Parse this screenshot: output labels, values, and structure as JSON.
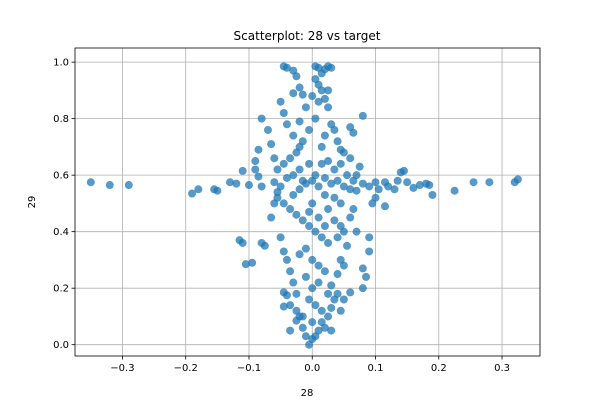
{
  "chart_data": {
    "type": "scatter",
    "title": "Scatterplot: 28 vs target",
    "xlabel": "28",
    "ylabel": "29",
    "xlim": [
      -0.375,
      0.36
    ],
    "ylim": [
      -0.04,
      1.05
    ],
    "xticks": [
      -0.3,
      -0.2,
      -0.1,
      0.0,
      0.1,
      0.2,
      0.3
    ],
    "xtick_labels": [
      "−0.3",
      "−0.2",
      "−0.1",
      "0.0",
      "0.1",
      "0.2",
      "0.3"
    ],
    "yticks": [
      0.0,
      0.2,
      0.4,
      0.6,
      0.8,
      1.0
    ],
    "ytick_labels": [
      "0.0",
      "0.2",
      "0.4",
      "0.6",
      "0.8",
      "1.0"
    ],
    "grid": true,
    "marker_color": "#1f77b4",
    "marker_alpha": 0.75,
    "series": [
      {
        "points": [
          [
            -0.35,
            0.575
          ],
          [
            -0.32,
            0.565
          ],
          [
            -0.29,
            0.565
          ],
          [
            -0.19,
            0.535
          ],
          [
            -0.18,
            0.55
          ],
          [
            -0.155,
            0.55
          ],
          [
            -0.15,
            0.545
          ],
          [
            -0.13,
            0.575
          ],
          [
            -0.12,
            0.57
          ],
          [
            -0.11,
            0.615
          ],
          [
            -0.1,
            0.565
          ],
          [
            -0.09,
            0.62
          ],
          [
            -0.085,
            0.595
          ],
          [
            -0.08,
            0.56
          ],
          [
            -0.115,
            0.37
          ],
          [
            -0.11,
            0.36
          ],
          [
            -0.105,
            0.285
          ],
          [
            -0.095,
            0.29
          ],
          [
            -0.08,
            0.36
          ],
          [
            -0.075,
            0.35
          ],
          [
            -0.09,
            0.65
          ],
          [
            -0.085,
            0.69
          ],
          [
            -0.08,
            0.8
          ],
          [
            -0.07,
            0.76
          ],
          [
            -0.065,
            0.71
          ],
          [
            -0.06,
            0.66
          ],
          [
            -0.065,
            0.45
          ],
          [
            -0.06,
            0.5
          ],
          [
            -0.055,
            0.54
          ],
          [
            -0.045,
            0.985
          ],
          [
            -0.04,
            0.98
          ],
          [
            -0.03,
            0.97
          ],
          [
            -0.025,
            0.95
          ],
          [
            -0.02,
            0.91
          ],
          [
            -0.015,
            0.885
          ],
          [
            -0.05,
            0.86
          ],
          [
            -0.045,
            0.82
          ],
          [
            -0.04,
            0.78
          ],
          [
            -0.03,
            0.74
          ],
          [
            -0.02,
            0.7
          ],
          [
            -0.05,
            0.38
          ],
          [
            -0.045,
            0.33
          ],
          [
            -0.04,
            0.3
          ],
          [
            -0.035,
            0.26
          ],
          [
            -0.03,
            0.22
          ],
          [
            -0.045,
            0.185
          ],
          [
            -0.04,
            0.175
          ],
          [
            -0.035,
            0.14
          ],
          [
            -0.025,
            0.12
          ],
          [
            -0.02,
            0.1
          ],
          [
            -0.045,
            0.135
          ],
          [
            -0.035,
            0.05
          ],
          [
            -0.025,
            0.085
          ],
          [
            -0.015,
            0.06
          ],
          [
            -0.01,
            0.03
          ],
          [
            -0.005,
            0.0
          ],
          [
            0.0,
            0.02
          ],
          [
            0.005,
            0.03
          ],
          [
            0.01,
            0.05
          ],
          [
            0.015,
            0.08
          ],
          [
            0.02,
            0.06
          ],
          [
            0.025,
            0.1
          ],
          [
            0.03,
            0.05
          ],
          [
            0.03,
            0.13
          ],
          [
            0.035,
            0.16
          ],
          [
            0.04,
            0.18
          ],
          [
            0.045,
            0.12
          ],
          [
            0.05,
            0.16
          ],
          [
            0.06,
            0.185
          ],
          [
            0.04,
            0.25
          ],
          [
            0.045,
            0.3
          ],
          [
            0.05,
            0.28
          ],
          [
            0.055,
            0.35
          ],
          [
            0.04,
            0.38
          ],
          [
            0.045,
            0.42
          ],
          [
            0.05,
            0.4
          ],
          [
            0.06,
            0.45
          ],
          [
            0.065,
            0.48
          ],
          [
            0.08,
            0.2
          ],
          [
            0.085,
            0.24
          ],
          [
            0.08,
            0.27
          ],
          [
            0.09,
            0.33
          ],
          [
            0.09,
            0.38
          ],
          [
            0.07,
            0.4
          ],
          [
            0.005,
            0.985
          ],
          [
            0.01,
            0.98
          ],
          [
            0.015,
            0.96
          ],
          [
            0.02,
            0.975
          ],
          [
            0.025,
            0.985
          ],
          [
            0.03,
            0.98
          ],
          [
            0.005,
            0.94
          ],
          [
            0.01,
            0.92
          ],
          [
            0.015,
            0.9
          ],
          [
            0.02,
            0.87
          ],
          [
            0.025,
            0.84
          ],
          [
            0.03,
            0.78
          ],
          [
            0.035,
            0.76
          ],
          [
            0.04,
            0.72
          ],
          [
            0.045,
            0.69
          ],
          [
            0.05,
            0.68
          ],
          [
            0.06,
            0.66
          ],
          [
            0.06,
            0.77
          ],
          [
            0.065,
            0.75
          ],
          [
            0.08,
            0.81
          ],
          [
            0.075,
            0.63
          ],
          [
            0.07,
            0.6
          ],
          [
            0.06,
            0.55
          ],
          [
            0.07,
            0.545
          ],
          [
            0.08,
            0.57
          ],
          [
            0.09,
            0.56
          ],
          [
            0.1,
            0.575
          ],
          [
            0.105,
            0.55
          ],
          [
            0.115,
            0.575
          ],
          [
            0.12,
            0.56
          ],
          [
            0.13,
            0.55
          ],
          [
            0.135,
            0.58
          ],
          [
            0.14,
            0.61
          ],
          [
            0.145,
            0.615
          ],
          [
            0.15,
            0.575
          ],
          [
            0.16,
            0.555
          ],
          [
            0.17,
            0.565
          ],
          [
            0.18,
            0.57
          ],
          [
            0.185,
            0.565
          ],
          [
            0.19,
            0.53
          ],
          [
            0.115,
            0.49
          ],
          [
            0.1,
            0.52
          ],
          [
            0.095,
            0.5
          ],
          [
            0.225,
            0.545
          ],
          [
            0.255,
            0.575
          ],
          [
            0.28,
            0.575
          ],
          [
            0.32,
            0.575
          ],
          [
            0.325,
            0.585
          ],
          [
            -0.06,
            0.575
          ],
          [
            -0.05,
            0.56
          ],
          [
            -0.04,
            0.59
          ],
          [
            -0.03,
            0.6
          ],
          [
            -0.02,
            0.55
          ],
          [
            -0.01,
            0.57
          ],
          [
            0.0,
            0.58
          ],
          [
            0.01,
            0.56
          ],
          [
            0.02,
            0.59
          ],
          [
            0.03,
            0.57
          ],
          [
            0.04,
            0.58
          ],
          [
            0.05,
            0.56
          ],
          [
            -0.055,
            0.62
          ],
          [
            -0.045,
            0.64
          ],
          [
            -0.035,
            0.66
          ],
          [
            -0.025,
            0.68
          ],
          [
            -0.015,
            0.72
          ],
          [
            -0.005,
            0.76
          ],
          [
            0.005,
            0.8
          ],
          [
            -0.01,
            0.84
          ],
          [
            0.0,
            0.88
          ],
          [
            0.01,
            0.86
          ],
          [
            -0.055,
            0.52
          ],
          [
            -0.045,
            0.5
          ],
          [
            -0.035,
            0.48
          ],
          [
            -0.025,
            0.46
          ],
          [
            -0.015,
            0.44
          ],
          [
            -0.005,
            0.42
          ],
          [
            0.005,
            0.4
          ],
          [
            0.015,
            0.38
          ],
          [
            0.025,
            0.36
          ],
          [
            -0.01,
            0.34
          ],
          [
            0.0,
            0.3
          ],
          [
            0.01,
            0.28
          ],
          [
            -0.01,
            0.24
          ],
          [
            0.0,
            0.2
          ],
          [
            0.01,
            0.22
          ],
          [
            -0.005,
            0.16
          ],
          [
            0.005,
            0.14
          ],
          [
            0.015,
            0.12
          ],
          [
            -0.015,
            0.1
          ],
          [
            0.0,
            0.08
          ],
          [
            0.035,
            0.62
          ],
          [
            0.045,
            0.64
          ],
          [
            0.025,
            0.65
          ],
          [
            0.055,
            0.6
          ],
          [
            0.065,
            0.58
          ],
          [
            0.035,
            0.52
          ],
          [
            0.045,
            0.5
          ],
          [
            0.025,
            0.48
          ],
          [
            0.035,
            0.44
          ],
          [
            0.02,
            0.42
          ],
          [
            -0.02,
            0.62
          ],
          [
            -0.03,
            0.53
          ],
          [
            0.02,
            0.53
          ],
          [
            0.015,
            0.64
          ],
          [
            -0.005,
            0.64
          ],
          [
            0.0,
            0.5
          ],
          [
            -0.005,
            0.47
          ],
          [
            0.01,
            0.45
          ],
          [
            0.005,
            0.6
          ],
          [
            -0.015,
            0.58
          ],
          [
            0.02,
            0.74
          ],
          [
            -0.02,
            0.79
          ],
          [
            0.015,
            0.7
          ],
          [
            -0.03,
            0.89
          ],
          [
            0.025,
            0.9
          ],
          [
            -0.02,
            0.32
          ],
          [
            0.02,
            0.26
          ],
          [
            -0.025,
            0.18
          ],
          [
            0.025,
            0.18
          ],
          [
            0.03,
            0.21
          ]
        ]
      }
    ]
  }
}
